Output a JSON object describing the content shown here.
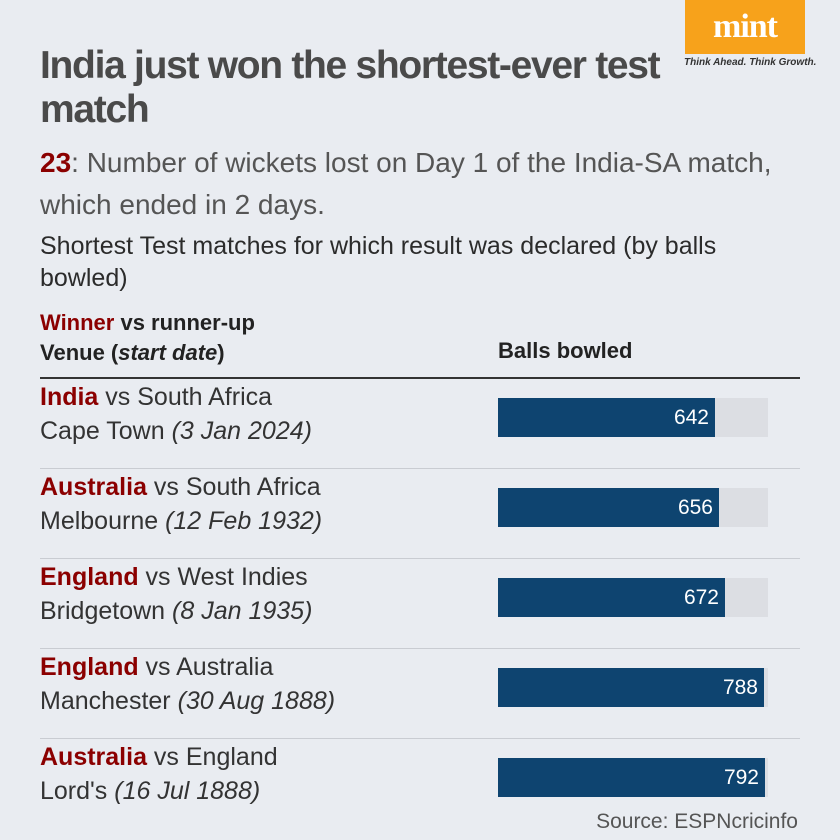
{
  "brand": {
    "logo": "mint",
    "tagline": "Think Ahead. Think Growth."
  },
  "title": "India just won the shortest-ever test match",
  "stat": {
    "number": "23",
    "text": ": Number of wickets lost on Day 1 of the India-SA match, which ended in 2 days."
  },
  "subtitle": "Shortest Test matches for which result was declared (by balls bowled)",
  "columns": {
    "winner": "Winner",
    "vs_runner_up": " vs runner-up",
    "venue": "Venue (",
    "start_date": "start date",
    "close_paren": ")",
    "balls": "Balls bowled"
  },
  "chart_data": {
    "type": "bar",
    "orientation": "horizontal",
    "xlim": [
      0,
      800
    ],
    "categories": [
      "India vs South Africa, Cape Town (3 Jan 2024)",
      "Australia vs South Africa, Melbourne (12 Feb 1932)",
      "England vs West Indies, Bridgetown (8 Jan 1935)",
      "England vs Australia, Manchester (30 Aug 1888)",
      "Australia vs England, Lord's (16 Jul 1888)"
    ],
    "rows": [
      {
        "winner": "India",
        "vs": " vs South Africa",
        "venue": "Cape Town ",
        "date": "(3 Jan 2024)",
        "balls": 642
      },
      {
        "winner": "Australia",
        "vs": " vs South Africa",
        "venue": "Melbourne ",
        "date": "(12 Feb 1932)",
        "balls": 656
      },
      {
        "winner": "England",
        "vs": " vs West Indies",
        "venue": "Bridgetown ",
        "date": "(8 Jan 1935)",
        "balls": 672
      },
      {
        "winner": "England",
        "vs": " vs Australia",
        "venue": "Manchester ",
        "date": "(30 Aug 1888)",
        "balls": 788
      },
      {
        "winner": "Australia",
        "vs": " vs England",
        "venue": "Lord's ",
        "date": "(16 Jul 1888)",
        "balls": 792
      }
    ],
    "colors": {
      "bar": "#0e4470",
      "track": "#dcdee3",
      "winner": "#8b0000"
    }
  },
  "source": "Source: ESPNcricinfo"
}
